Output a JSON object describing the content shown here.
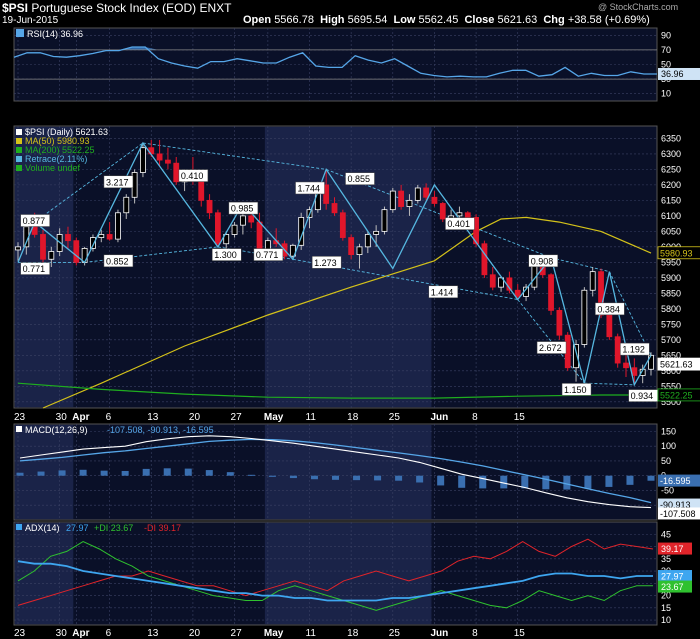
{
  "header": {
    "symbol": "$PSI",
    "name": "Portuguese Stock Index (EOD)",
    "exchange": "ENXT",
    "date": "19-Jun-2015",
    "open_label": "Open",
    "open": "5566.78",
    "high_label": "High",
    "high": "5695.54",
    "low_label": "Low",
    "low": "5562.45",
    "close_label": "Close",
    "close": "5621.63",
    "chg_label": "Chg",
    "chg": "+38.58 (+0.69%)",
    "credit": "@ StockCharts.com"
  },
  "colors": {
    "background": "#000000",
    "panel": "#0a1028",
    "shade": "#1a2348",
    "grid": "#3a4163",
    "price_up": "#ffffff",
    "price_down": "#e0162b",
    "ma50": "#d4c21a",
    "ma200": "#1fae1f",
    "retrace": "#56b7e0",
    "rsi": "#3a7cc4",
    "macd": "#ffffff",
    "signal": "#56a6e8",
    "hist": "#3a6fb0",
    "adx": "#3ea6f0",
    "pdi": "#2fc12f",
    "ndi": "#e0242a"
  },
  "chart_data": [
    {
      "type": "line",
      "panel": "rsi",
      "legend": "RSI(14) 36.96",
      "ylim": [
        0,
        100
      ],
      "y_ticks": [
        10,
        30,
        50,
        70,
        90
      ],
      "levels": [
        30,
        70
      ],
      "last_value_label": "36.96",
      "values": [
        60,
        66,
        66,
        61,
        60,
        62,
        65,
        69,
        69,
        74,
        74,
        58,
        52,
        48,
        45,
        54,
        54,
        58,
        55,
        52,
        52,
        60,
        66,
        48,
        46,
        46,
        62,
        56,
        52,
        58,
        48,
        38,
        35,
        33,
        34,
        33,
        33,
        38,
        42,
        42,
        34,
        36,
        46,
        34,
        38,
        35,
        35,
        40,
        37,
        37
      ]
    },
    {
      "type": "candlestick",
      "panel": "price",
      "title": "$PSI (Daily) 5621.63",
      "legend": [
        {
          "name": "$PSI (Daily) 5621.63",
          "color": "#ffffff"
        },
        {
          "name": "MA(50) 5980.93",
          "color": "#d4c21a"
        },
        {
          "name": "MA(200) 5522.25",
          "color": "#1fae1f"
        },
        {
          "name": "Retrace(2.11%)",
          "color": "#56b7e0"
        },
        {
          "name": "Volume undef",
          "color": "#1fae1f"
        }
      ],
      "ylim": [
        5480,
        6390
      ],
      "y_ticks": [
        5500,
        5550,
        5600,
        5650,
        5700,
        5750,
        5800,
        5850,
        5900,
        5950,
        6000,
        6050,
        6100,
        6150,
        6200,
        6250,
        6300,
        6350
      ],
      "x_labels": [
        {
          "i": 0,
          "label": "23"
        },
        {
          "i": 5,
          "label": "30"
        },
        {
          "i": 7,
          "label": "Apr"
        },
        {
          "i": 11,
          "label": "6"
        },
        {
          "i": 16,
          "label": "13"
        },
        {
          "i": 21,
          "label": "20"
        },
        {
          "i": 26,
          "label": "27"
        },
        {
          "i": 30,
          "label": "May"
        },
        {
          "i": 35,
          "label": "11"
        },
        {
          "i": 40,
          "label": "18"
        },
        {
          "i": 45,
          "label": "25"
        },
        {
          "i": 50,
          "label": "Jun"
        },
        {
          "i": 55,
          "label": "8"
        },
        {
          "i": 60,
          "label": "15"
        }
      ],
      "ohlc": [
        [
          5990,
          6015,
          5955,
          6000
        ],
        [
          6000,
          6080,
          5975,
          6065
        ],
        [
          6065,
          6110,
          6030,
          6040
        ],
        [
          6040,
          6055,
          5950,
          5960
        ],
        [
          5960,
          6000,
          5935,
          5985
        ],
        [
          5985,
          6060,
          5970,
          6040
        ],
        [
          6040,
          6065,
          5995,
          6020
        ],
        [
          6020,
          6030,
          5940,
          5950
        ],
        [
          5950,
          6000,
          5940,
          5995
        ],
        [
          5995,
          6040,
          5985,
          6030
        ],
        [
          6030,
          6055,
          6015,
          6040
        ],
        [
          6040,
          6080,
          6020,
          6025
        ],
        [
          6025,
          6120,
          6015,
          6110
        ],
        [
          6110,
          6170,
          6090,
          6160
        ],
        [
          6160,
          6250,
          6140,
          6240
        ],
        [
          6240,
          6330,
          6225,
          6320
        ],
        [
          6320,
          6345,
          6290,
          6300
        ],
        [
          6300,
          6345,
          6260,
          6280
        ],
        [
          6280,
          6320,
          6250,
          6270
        ],
        [
          6270,
          6290,
          6200,
          6210
        ],
        [
          6210,
          6250,
          6180,
          6240
        ],
        [
          6240,
          6290,
          6200,
          6220
        ],
        [
          6220,
          6230,
          6130,
          6150
        ],
        [
          6150,
          6170,
          6090,
          6110
        ],
        [
          6110,
          6120,
          6000,
          6010
        ],
        [
          6010,
          6050,
          5990,
          6040
        ],
        [
          6040,
          6080,
          6030,
          6070
        ],
        [
          6070,
          6110,
          6040,
          6100
        ],
        [
          6100,
          6130,
          6060,
          6080
        ],
        [
          6080,
          6110,
          5960,
          5975
        ],
        [
          5975,
          6030,
          5960,
          6020
        ],
        [
          6020,
          6060,
          6000,
          6010
        ],
        [
          6010,
          6020,
          5960,
          5970
        ],
        [
          5970,
          6010,
          5960,
          6005
        ],
        [
          6005,
          6110,
          5990,
          6095
        ],
        [
          6095,
          6130,
          6060,
          6120
        ],
        [
          6120,
          6210,
          6110,
          6200
        ],
        [
          6200,
          6250,
          6120,
          6140
        ],
        [
          6140,
          6160,
          6100,
          6110
        ],
        [
          6110,
          6120,
          6020,
          6030
        ],
        [
          6030,
          6040,
          5960,
          5975
        ],
        [
          5975,
          6010,
          5930,
          6000
        ],
        [
          6000,
          6050,
          5980,
          6040
        ],
        [
          6040,
          6070,
          6000,
          6050
        ],
        [
          6050,
          6130,
          6040,
          6120
        ],
        [
          6120,
          6190,
          6110,
          6180
        ],
        [
          6180,
          6200,
          6120,
          6130
        ],
        [
          6130,
          6170,
          6100,
          6150
        ],
        [
          6150,
          6200,
          6140,
          6190
        ],
        [
          6190,
          6205,
          6150,
          6160
        ],
        [
          6160,
          6180,
          6130,
          6140
        ],
        [
          6140,
          6145,
          6080,
          6090
        ],
        [
          6090,
          6120,
          6070,
          6100
        ],
        [
          6100,
          6130,
          6080,
          6110
        ],
        [
          6110,
          6115,
          6080,
          6095
        ],
        [
          6095,
          6105,
          6000,
          6010
        ],
        [
          6010,
          6020,
          5900,
          5910
        ],
        [
          5910,
          5935,
          5860,
          5870
        ],
        [
          5870,
          5905,
          5855,
          5900
        ],
        [
          5900,
          5920,
          5850,
          5860
        ],
        [
          5860,
          5880,
          5830,
          5840
        ],
        [
          5840,
          5880,
          5825,
          5870
        ],
        [
          5870,
          5965,
          5860,
          5950
        ],
        [
          5950,
          5960,
          5900,
          5910
        ],
        [
          5910,
          5915,
          5780,
          5795
        ],
        [
          5795,
          5805,
          5700,
          5715
        ],
        [
          5715,
          5725,
          5600,
          5610
        ],
        [
          5610,
          5700,
          5565,
          5685
        ],
        [
          5685,
          5870,
          5675,
          5860
        ],
        [
          5860,
          5935,
          5840,
          5920
        ],
        [
          5920,
          5930,
          5770,
          5780
        ],
        [
          5780,
          5790,
          5700,
          5710
        ],
        [
          5710,
          5720,
          5610,
          5625
        ],
        [
          5625,
          5690,
          5580,
          5610
        ],
        [
          5610,
          5640,
          5555,
          5585
        ],
        [
          5585,
          5620,
          5560,
          5605
        ],
        [
          5605,
          5660,
          5585,
          5650
        ]
      ],
      "ma50": {
        "first": 5480,
        "points": [
          [
            3,
            5480
          ],
          [
            10,
            5560
          ],
          [
            20,
            5680
          ],
          [
            30,
            5780
          ],
          [
            40,
            5870
          ],
          [
            50,
            5955
          ],
          [
            55,
            6050
          ],
          [
            58,
            6090
          ],
          [
            61,
            6095
          ],
          [
            65,
            6080
          ],
          [
            70,
            6050
          ],
          [
            76,
            5980
          ]
        ]
      },
      "ma200": {
        "points": [
          [
            0,
            5560
          ],
          [
            10,
            5540
          ],
          [
            20,
            5525
          ],
          [
            30,
            5515
          ],
          [
            40,
            5512
          ],
          [
            50,
            5512
          ],
          [
            60,
            5518
          ],
          [
            70,
            5522
          ],
          [
            76,
            5522
          ]
        ]
      },
      "retrace_solid": [
        [
          0,
          5950
        ],
        [
          2,
          6080
        ],
        [
          8,
          5950
        ],
        [
          15,
          6335
        ],
        [
          24,
          6000
        ],
        [
          27,
          6140
        ],
        [
          33,
          5960
        ],
        [
          37,
          6250
        ],
        [
          45,
          5930
        ],
        [
          50,
          6200
        ],
        [
          60,
          5830
        ],
        [
          64,
          5965
        ],
        [
          68,
          5560
        ],
        [
          71,
          5920
        ],
        [
          74,
          5555
        ],
        [
          76,
          5650
        ]
      ],
      "retrace_dashed": [
        [
          [
            0,
            5950
          ],
          [
            8,
            5950
          ]
        ],
        [
          [
            2,
            6080
          ],
          [
            15,
            6335
          ]
        ],
        [
          [
            8,
            5950
          ],
          [
            24,
            6000
          ]
        ],
        [
          [
            24,
            6000
          ],
          [
            33,
            5960
          ]
        ],
        [
          [
            15,
            6335
          ],
          [
            37,
            6250
          ]
        ],
        [
          [
            33,
            5960
          ],
          [
            60,
            5830
          ]
        ],
        [
          [
            37,
            6250
          ],
          [
            64,
            5965
          ]
        ],
        [
          [
            64,
            5965
          ],
          [
            71,
            5920
          ]
        ],
        [
          [
            60,
            5830
          ],
          [
            68,
            5560
          ]
        ],
        [
          [
            68,
            5560
          ],
          [
            74,
            5555
          ]
        ],
        [
          [
            71,
            5920
          ],
          [
            76,
            5650
          ]
        ]
      ],
      "annotations": [
        {
          "i": 2,
          "v": 6085,
          "text": "0.877"
        },
        {
          "i": 2,
          "v": 5930,
          "text": "0.771"
        },
        {
          "i": 12,
          "v": 6210,
          "text": "3.217"
        },
        {
          "i": 12,
          "v": 5955,
          "text": "0.852"
        },
        {
          "i": 21,
          "v": 6230,
          "text": "0.410"
        },
        {
          "i": 27,
          "v": 6125,
          "text": "0.985"
        },
        {
          "i": 25,
          "v": 5975,
          "text": "1.300"
        },
        {
          "i": 30,
          "v": 5975,
          "text": "0.771"
        },
        {
          "i": 35,
          "v": 6190,
          "text": "1.744"
        },
        {
          "i": 37,
          "v": 5950,
          "text": "1.273"
        },
        {
          "i": 41,
          "v": 6220,
          "text": "0.855"
        },
        {
          "i": 53,
          "v": 6075,
          "text": "0.401"
        },
        {
          "i": 51,
          "v": 5855,
          "text": "1.414"
        },
        {
          "i": 63,
          "v": 5955,
          "text": "0.908"
        },
        {
          "i": 64,
          "v": 5675,
          "text": "2.672"
        },
        {
          "i": 71,
          "v": 5800,
          "text": "0.384"
        },
        {
          "i": 67,
          "v": 5540,
          "text": "1.150"
        },
        {
          "i": 74,
          "v": 5670,
          "text": "1.192"
        },
        {
          "i": 75,
          "v": 5520,
          "text": "0.934"
        }
      ],
      "last_labels": [
        {
          "v": 5980.93,
          "text": "5980.93",
          "color": "#d4c21a"
        },
        {
          "v": 5621.63,
          "text": "5621.63",
          "color": "#ffffff"
        },
        {
          "v": 5522.25,
          "text": "5522.25",
          "color": "#1fae1f"
        }
      ]
    },
    {
      "type": "line",
      "panel": "macd",
      "legend_name": "MACD(12,26,9)",
      "legend_values": "-107.508, -90.913, -16.595",
      "ylim": [
        -150,
        175
      ],
      "y_ticks": [
        150,
        100,
        50,
        0,
        -50,
        -100
      ],
      "macd": [
        60,
        70,
        80,
        90,
        95,
        100,
        115,
        125,
        132,
        135,
        132,
        126,
        118,
        110,
        100,
        90,
        80,
        70,
        60,
        45,
        25,
        5,
        -10,
        -25,
        -40,
        -58,
        -75,
        -88,
        -98,
        -105,
        -108
      ],
      "signal": [
        50,
        56,
        62,
        70,
        78,
        84,
        92,
        100,
        108,
        116,
        120,
        123,
        122,
        118,
        112,
        104,
        95,
        86,
        77,
        68,
        58,
        46,
        33,
        18,
        3,
        -12,
        -28,
        -44,
        -60,
        -74,
        -91
      ],
      "hist": [
        10,
        14,
        18,
        20,
        17,
        16,
        23,
        25,
        24,
        19,
        12,
        3,
        -4,
        -8,
        -12,
        -14,
        -15,
        -16,
        -17,
        -23,
        -33,
        -41,
        -43,
        -43,
        -43,
        -46,
        -47,
        -44,
        -38,
        -31,
        -17
      ],
      "last_labels": [
        {
          "v": -16.595,
          "text": "-16.595"
        },
        {
          "v": -90.913,
          "text": "-90.913"
        },
        {
          "v": -107.508,
          "text": "-107.508"
        }
      ]
    },
    {
      "type": "line",
      "panel": "adx",
      "legend_name": "ADX(14)",
      "legend_adx": "27.97",
      "legend_pdi": "+DI 23.67",
      "legend_ndi": "-DI 39.17",
      "ylim": [
        8,
        50
      ],
      "y_ticks": [
        45,
        40,
        35,
        30,
        25,
        20,
        15,
        10
      ],
      "adx": [
        34,
        33,
        33,
        32,
        30,
        29,
        28,
        27,
        26,
        25,
        24,
        23,
        22,
        21,
        21,
        20,
        20,
        19,
        19,
        18,
        18,
        18,
        18,
        19,
        19,
        20,
        21,
        22,
        23,
        24,
        25,
        26,
        28,
        29,
        29,
        28,
        28,
        27,
        28,
        28
      ],
      "pdi": [
        26,
        30,
        36,
        38,
        42,
        39,
        35,
        32,
        28,
        26,
        24,
        22,
        20,
        19,
        18,
        18,
        22,
        24,
        22,
        20,
        18,
        16,
        14,
        16,
        18,
        20,
        22,
        20,
        18,
        16,
        15,
        18,
        22,
        20,
        18,
        20,
        18,
        22,
        24,
        24
      ],
      "ndi": [
        16,
        18,
        20,
        22,
        24,
        26,
        28,
        28,
        30,
        28,
        26,
        24,
        24,
        22,
        20,
        22,
        24,
        26,
        24,
        22,
        26,
        28,
        30,
        28,
        26,
        28,
        30,
        34,
        36,
        35,
        38,
        42,
        38,
        36,
        40,
        43,
        39,
        41,
        40,
        39
      ],
      "last_labels": [
        {
          "v": 39.17,
          "text": "39.17",
          "color": "#e0242a"
        },
        {
          "v": 27.97,
          "text": "27.97",
          "color": "#3ea6f0"
        },
        {
          "v": 23.67,
          "text": "23.67",
          "color": "#2fc12f"
        }
      ]
    }
  ]
}
